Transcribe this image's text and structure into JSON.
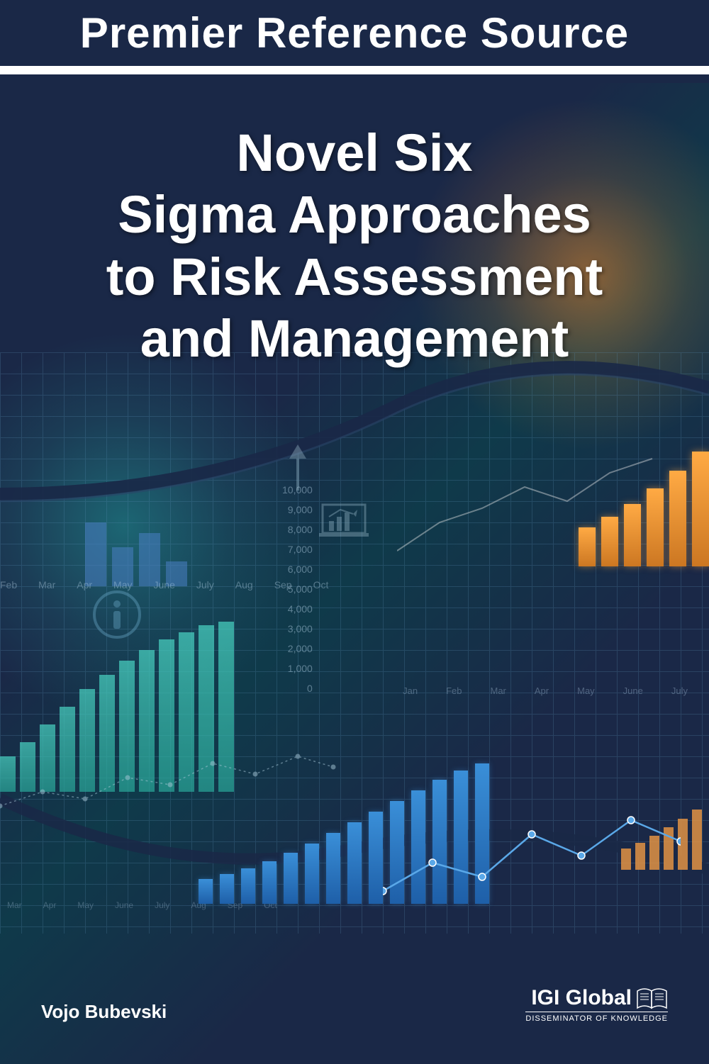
{
  "header": {
    "series": "Premier Reference Source"
  },
  "title": {
    "line1": "Novel Six",
    "line2": "Sigma Approaches",
    "line3": "to Risk Assessment",
    "line4": "and Management"
  },
  "author": "Vojo Bubevski",
  "publisher": {
    "name": "IGI Global",
    "tagline": "DISSEMINATOR OF KNOWLEDGE"
  },
  "colors": {
    "background": "#1a2847",
    "header_band": "#1a2847",
    "divider": "#ffffff",
    "teal_glow": "#2aa89a",
    "orange_glow": "#ff8c28",
    "blue_bar": "#3a8fd8",
    "orange_bar": "#ffaa44",
    "grid": "#5a8fb5",
    "text": "#ffffff",
    "axis_text": "#b8d4e8"
  },
  "charts": {
    "y_axis_labels": [
      "10,000",
      "9,000",
      "8,000",
      "7,000",
      "6,000",
      "5,000",
      "4,000",
      "3,000",
      "2,000",
      "1,000",
      "0"
    ],
    "months_top": [
      "Feb",
      "Mar",
      "Apr",
      "May",
      "June",
      "July",
      "Aug",
      "Sep",
      "Oct"
    ],
    "months_right": [
      "Jan",
      "Feb",
      "Mar",
      "Apr",
      "May",
      "June",
      "July"
    ],
    "months_bottom": [
      "Mar",
      "Apr",
      "May",
      "June",
      "July",
      "Aug",
      "Sep",
      "Oct"
    ],
    "teal_bars": [
      50,
      70,
      95,
      120,
      145,
      165,
      185,
      200,
      215,
      225,
      235,
      240
    ],
    "blue_small_bars": [
      90,
      55,
      75,
      35
    ],
    "blue_main_bars": [
      35,
      42,
      50,
      60,
      72,
      85,
      100,
      115,
      130,
      145,
      160,
      175,
      188,
      198
    ],
    "orange_bars": [
      55,
      70,
      88,
      110,
      135,
      162
    ],
    "orange_small_bars": [
      30,
      38,
      48,
      60,
      72,
      85
    ],
    "line_white_points": [
      [
        0,
        160
      ],
      [
        60,
        120
      ],
      [
        120,
        100
      ],
      [
        180,
        70
      ],
      [
        240,
        90
      ],
      [
        300,
        50
      ],
      [
        360,
        30
      ]
    ],
    "line_blue_points": [
      [
        0,
        140
      ],
      [
        70,
        100
      ],
      [
        140,
        120
      ],
      [
        210,
        60
      ],
      [
        280,
        90
      ],
      [
        350,
        40
      ],
      [
        420,
        70
      ]
    ],
    "dot_line_points": [
      [
        0,
        90
      ],
      [
        60,
        70
      ],
      [
        120,
        80
      ],
      [
        180,
        50
      ],
      [
        240,
        60
      ],
      [
        300,
        30
      ],
      [
        360,
        45
      ],
      [
        420,
        20
      ],
      [
        470,
        35
      ]
    ]
  },
  "typography": {
    "header_fontsize": 60,
    "title_fontsize": 74,
    "author_fontsize": 26,
    "publisher_fontsize": 30,
    "tagline_fontsize": 11
  }
}
